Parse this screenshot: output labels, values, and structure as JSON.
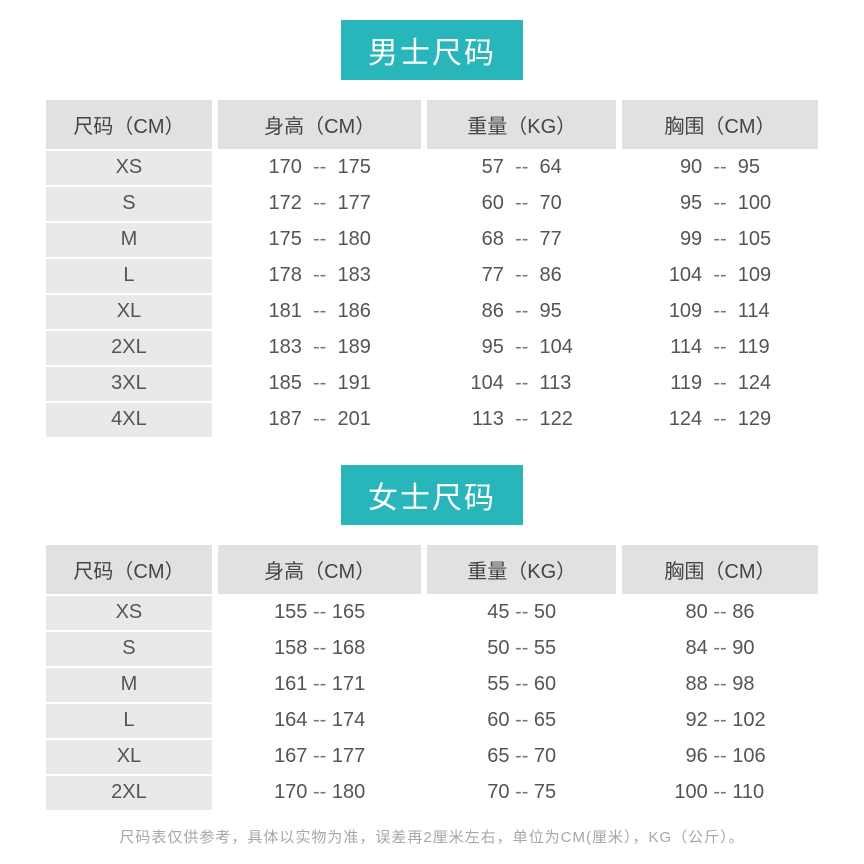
{
  "colors": {
    "badge_bg": "#28b6bb",
    "header_bg": "#dfe2e1",
    "size_col_bg": "#e7eae9",
    "text_color": "#555555",
    "footer_color": "#a5a8a7"
  },
  "fontsizes": {
    "title": 30,
    "header": 20,
    "cell": 20,
    "footer": 15
  },
  "men": {
    "title": "男士尺码",
    "columns": [
      "尺码（CM）",
      "身高（CM）",
      "重量（KG）",
      "胸围（CM）"
    ],
    "rows": [
      {
        "size": "XS",
        "height": [
          170,
          175
        ],
        "weight": [
          57,
          64
        ],
        "chest": [
          90,
          95
        ]
      },
      {
        "size": "S",
        "height": [
          172,
          177
        ],
        "weight": [
          60,
          70
        ],
        "chest": [
          95,
          100
        ]
      },
      {
        "size": "M",
        "height": [
          175,
          180
        ],
        "weight": [
          68,
          77
        ],
        "chest": [
          99,
          105
        ]
      },
      {
        "size": "L",
        "height": [
          178,
          183
        ],
        "weight": [
          77,
          86
        ],
        "chest": [
          104,
          109
        ]
      },
      {
        "size": "XL",
        "height": [
          181,
          186
        ],
        "weight": [
          86,
          95
        ],
        "chest": [
          109,
          114
        ]
      },
      {
        "size": "2XL",
        "height": [
          183,
          189
        ],
        "weight": [
          95,
          104
        ],
        "chest": [
          114,
          119
        ]
      },
      {
        "size": "3XL",
        "height": [
          185,
          191
        ],
        "weight": [
          104,
          113
        ],
        "chest": [
          119,
          124
        ]
      },
      {
        "size": "4XL",
        "height": [
          187,
          201
        ],
        "weight": [
          113,
          122
        ],
        "chest": [
          124,
          129
        ]
      }
    ],
    "separator": "--",
    "col_widths_pct": [
      22,
      27,
      25,
      26
    ]
  },
  "women": {
    "title": "女士尺码",
    "columns": [
      "尺码（CM）",
      "身高（CM）",
      "重量（KG）",
      "胸围（CM）"
    ],
    "rows": [
      {
        "size": "XS",
        "height": [
          155,
          165
        ],
        "weight": [
          45,
          50
        ],
        "chest": [
          80,
          86
        ]
      },
      {
        "size": "S",
        "height": [
          158,
          168
        ],
        "weight": [
          50,
          55
        ],
        "chest": [
          84,
          90
        ]
      },
      {
        "size": "M",
        "height": [
          161,
          171
        ],
        "weight": [
          55,
          60
        ],
        "chest": [
          88,
          98
        ]
      },
      {
        "size": "L",
        "height": [
          164,
          174
        ],
        "weight": [
          60,
          65
        ],
        "chest": [
          92,
          102
        ]
      },
      {
        "size": "XL",
        "height": [
          167,
          177
        ],
        "weight": [
          65,
          70
        ],
        "chest": [
          96,
          106
        ]
      },
      {
        "size": "2XL",
        "height": [
          170,
          180
        ],
        "weight": [
          70,
          75
        ],
        "chest": [
          100,
          110
        ]
      }
    ],
    "separator": "--",
    "col_widths_pct": [
      22,
      27,
      25,
      26
    ]
  },
  "footer": "尺码表仅供参考，具体以实物为准，误差再2厘米左右，单位为CM(厘米），KG（公斤）。"
}
